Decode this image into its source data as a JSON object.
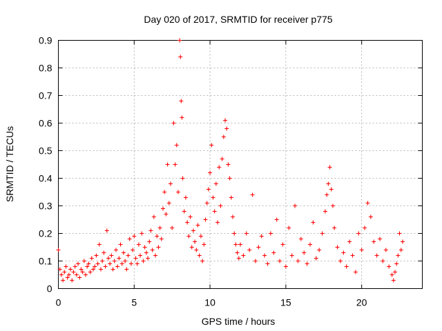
{
  "chart_data": {
    "type": "scatter",
    "title": "Day 020 of 2017, SRMTID for receiver p775",
    "xlabel": "GPS time / hours",
    "ylabel": "SRMTID / TECUs",
    "xlim": [
      0,
      24
    ],
    "ylim": [
      0,
      0.9
    ],
    "x_ticks": [
      0,
      5,
      10,
      15,
      20
    ],
    "x_tick_labels": [
      "0",
      "5",
      "10",
      "15",
      "20"
    ],
    "y_ticks": [
      0,
      0.1,
      0.2,
      0.3,
      0.4,
      0.5,
      0.6,
      0.7,
      0.8,
      0.9
    ],
    "y_tick_labels": [
      "0",
      "0.1",
      "0.2",
      "0.3",
      "0.4",
      "0.5",
      "0.6",
      "0.7",
      "0.8",
      "0.9"
    ],
    "grid": true,
    "marker": "+",
    "marker_color": "#ff0000",
    "series": [
      {
        "name": "SRMTID",
        "points": [
          [
            0.0,
            0.14
          ],
          [
            0.1,
            0.07
          ],
          [
            0.2,
            0.05
          ],
          [
            0.3,
            0.03
          ],
          [
            0.4,
            0.06
          ],
          [
            0.5,
            0.08
          ],
          [
            0.6,
            0.04
          ],
          [
            0.7,
            0.05
          ],
          [
            0.8,
            0.07
          ],
          [
            0.9,
            0.03
          ],
          [
            1.0,
            0.06
          ],
          [
            1.1,
            0.08
          ],
          [
            1.2,
            0.05
          ],
          [
            1.3,
            0.09
          ],
          [
            1.4,
            0.04
          ],
          [
            1.5,
            0.07
          ],
          [
            1.6,
            0.06
          ],
          [
            1.7,
            0.1
          ],
          [
            1.8,
            0.05
          ],
          [
            1.9,
            0.08
          ],
          [
            2.0,
            0.09
          ],
          [
            2.1,
            0.06
          ],
          [
            2.2,
            0.11
          ],
          [
            2.3,
            0.07
          ],
          [
            2.4,
            0.08
          ],
          [
            2.5,
            0.12
          ],
          [
            2.6,
            0.09
          ],
          [
            2.7,
            0.16
          ],
          [
            2.8,
            0.07
          ],
          [
            2.9,
            0.1
          ],
          [
            3.0,
            0.13
          ],
          [
            3.1,
            0.08
          ],
          [
            3.2,
            0.21
          ],
          [
            3.3,
            0.11
          ],
          [
            3.4,
            0.09
          ],
          [
            3.5,
            0.12
          ],
          [
            3.6,
            0.07
          ],
          [
            3.7,
            0.1
          ],
          [
            3.8,
            0.14
          ],
          [
            3.9,
            0.08
          ],
          [
            4.0,
            0.11
          ],
          [
            4.1,
            0.16
          ],
          [
            4.2,
            0.09
          ],
          [
            4.3,
            0.13
          ],
          [
            4.4,
            0.1
          ],
          [
            4.5,
            0.07
          ],
          [
            4.6,
            0.12
          ],
          [
            4.7,
            0.18
          ],
          [
            4.8,
            0.09
          ],
          [
            4.9,
            0.14
          ],
          [
            5.0,
            0.19
          ],
          [
            5.1,
            0.11
          ],
          [
            5.2,
            0.09
          ],
          [
            5.3,
            0.16
          ],
          [
            5.4,
            0.12
          ],
          [
            5.5,
            0.2
          ],
          [
            5.6,
            0.1
          ],
          [
            5.7,
            0.15
          ],
          [
            5.8,
            0.13
          ],
          [
            5.9,
            0.11
          ],
          [
            6.0,
            0.17
          ],
          [
            6.1,
            0.21
          ],
          [
            6.2,
            0.14
          ],
          [
            6.3,
            0.26
          ],
          [
            6.4,
            0.12
          ],
          [
            6.5,
            0.19
          ],
          [
            6.6,
            0.15
          ],
          [
            6.7,
            0.22
          ],
          [
            6.8,
            0.18
          ],
          [
            6.9,
            0.29
          ],
          [
            7.0,
            0.35
          ],
          [
            7.1,
            0.27
          ],
          [
            7.2,
            0.45
          ],
          [
            7.3,
            0.31
          ],
          [
            7.4,
            0.38
          ],
          [
            7.5,
            0.22
          ],
          [
            7.6,
            0.6
          ],
          [
            7.7,
            0.45
          ],
          [
            7.8,
            0.52
          ],
          [
            7.9,
            0.35
          ],
          [
            8.0,
            0.9
          ],
          [
            8.05,
            0.84
          ],
          [
            8.1,
            0.68
          ],
          [
            8.15,
            0.62
          ],
          [
            8.2,
            0.4
          ],
          [
            8.3,
            0.28
          ],
          [
            8.4,
            0.33
          ],
          [
            8.5,
            0.24
          ],
          [
            8.6,
            0.19
          ],
          [
            8.7,
            0.26
          ],
          [
            8.8,
            0.15
          ],
          [
            8.9,
            0.21
          ],
          [
            9.0,
            0.17
          ],
          [
            9.1,
            0.14
          ],
          [
            9.2,
            0.23
          ],
          [
            9.3,
            0.12
          ],
          [
            9.4,
            0.19
          ],
          [
            9.5,
            0.1
          ],
          [
            9.6,
            0.16
          ],
          [
            9.7,
            0.25
          ],
          [
            9.8,
            0.31
          ],
          [
            9.9,
            0.36
          ],
          [
            10.0,
            0.42
          ],
          [
            10.1,
            0.52
          ],
          [
            10.2,
            0.33
          ],
          [
            10.3,
            0.28
          ],
          [
            10.4,
            0.38
          ],
          [
            10.5,
            0.24
          ],
          [
            10.6,
            0.44
          ],
          [
            10.7,
            0.3
          ],
          [
            10.8,
            0.47
          ],
          [
            10.9,
            0.55
          ],
          [
            11.0,
            0.61
          ],
          [
            11.1,
            0.58
          ],
          [
            11.2,
            0.45
          ],
          [
            11.3,
            0.4
          ],
          [
            11.4,
            0.33
          ],
          [
            11.5,
            0.26
          ],
          [
            11.6,
            0.2
          ],
          [
            11.7,
            0.16
          ],
          [
            11.8,
            0.13
          ],
          [
            11.9,
            0.11
          ],
          [
            12.0,
            0.16
          ],
          [
            12.2,
            0.12
          ],
          [
            12.4,
            0.2
          ],
          [
            12.6,
            0.14
          ],
          [
            12.8,
            0.34
          ],
          [
            13.0,
            0.1
          ],
          [
            13.2,
            0.15
          ],
          [
            13.4,
            0.19
          ],
          [
            13.6,
            0.12
          ],
          [
            13.8,
            0.09
          ],
          [
            14.0,
            0.2
          ],
          [
            14.2,
            0.13
          ],
          [
            14.4,
            0.25
          ],
          [
            14.6,
            0.1
          ],
          [
            14.8,
            0.16
          ],
          [
            15.0,
            0.08
          ],
          [
            15.2,
            0.22
          ],
          [
            15.4,
            0.12
          ],
          [
            15.6,
            0.3
          ],
          [
            15.8,
            0.1
          ],
          [
            16.0,
            0.18
          ],
          [
            16.2,
            0.13
          ],
          [
            16.4,
            0.09
          ],
          [
            16.6,
            0.16
          ],
          [
            16.8,
            0.24
          ],
          [
            17.0,
            0.11
          ],
          [
            17.2,
            0.14
          ],
          [
            17.4,
            0.2
          ],
          [
            17.6,
            0.28
          ],
          [
            17.7,
            0.34
          ],
          [
            17.8,
            0.38
          ],
          [
            17.9,
            0.44
          ],
          [
            18.0,
            0.36
          ],
          [
            18.1,
            0.3
          ],
          [
            18.2,
            0.22
          ],
          [
            18.4,
            0.15
          ],
          [
            18.6,
            0.1
          ],
          [
            18.8,
            0.13
          ],
          [
            19.0,
            0.08
          ],
          [
            19.2,
            0.17
          ],
          [
            19.4,
            0.12
          ],
          [
            19.6,
            0.06
          ],
          [
            19.8,
            0.2
          ],
          [
            20.0,
            0.14
          ],
          [
            20.2,
            0.22
          ],
          [
            20.4,
            0.31
          ],
          [
            20.6,
            0.26
          ],
          [
            20.8,
            0.17
          ],
          [
            21.0,
            0.12
          ],
          [
            21.2,
            0.18
          ],
          [
            21.4,
            0.1
          ],
          [
            21.6,
            0.14
          ],
          [
            21.8,
            0.08
          ],
          [
            22.0,
            0.05
          ],
          [
            22.1,
            0.03
          ],
          [
            22.2,
            0.06
          ],
          [
            22.3,
            0.09
          ],
          [
            22.4,
            0.12
          ],
          [
            22.5,
            0.2
          ],
          [
            22.6,
            0.14
          ],
          [
            22.7,
            0.17
          ]
        ]
      }
    ]
  }
}
